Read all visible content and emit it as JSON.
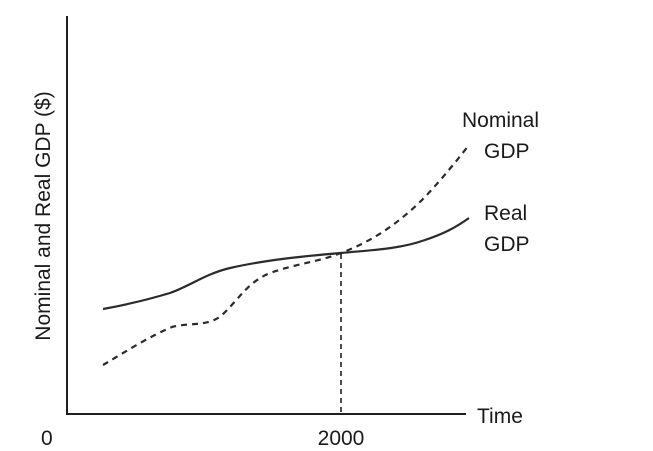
{
  "chart_data": {
    "type": "line",
    "ylabel": "Nominal and Real GDP ($)",
    "xlabel": "Time",
    "origin_label": "0",
    "x_ticks": [
      {
        "label": "2000"
      }
    ],
    "series": [
      {
        "name": "Nominal GDP",
        "label_lines": [
          "Nominal",
          "GDP"
        ],
        "style": "dashed",
        "color": "#2b2b2b"
      },
      {
        "name": "Real GDP",
        "label_lines": [
          "Real",
          "GDP"
        ],
        "style": "solid",
        "color": "#2b2b2b"
      }
    ],
    "annotations": [
      "Nominal GDP and Real GDP are equal in the base year 2000, marked by a dashed vertical line"
    ],
    "grid": false,
    "legend": "none"
  }
}
